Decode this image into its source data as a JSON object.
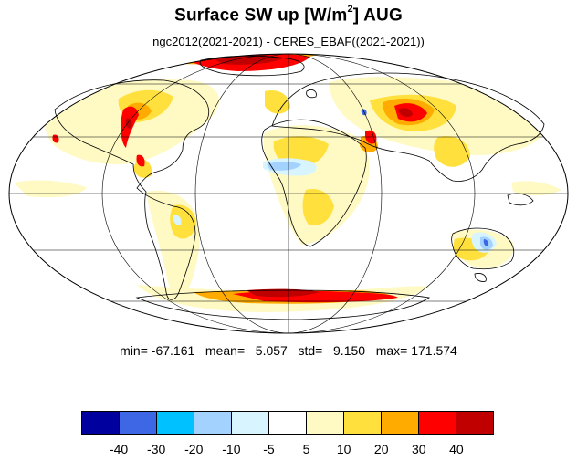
{
  "header": {
    "title_main": "Surface SW up [W/m",
    "title_sup": "2",
    "title_tail": "]  AUG",
    "subtitle": "ngc2012(2021-2021) - CERES_EBAF((2021-2021))"
  },
  "stats": {
    "text": "min= -67.161   mean=   5.057   std=   9.150   max= 171.574",
    "min": -67.161,
    "mean": 5.057,
    "std": 9.15,
    "max": 171.574
  },
  "colorbar": {
    "colors": [
      "#00009e",
      "#3e67e6",
      "#00c1ff",
      "#a4d2ff",
      "#d8f4ff",
      "#ffffff",
      "#fffac4",
      "#ffe03c",
      "#ffab00",
      "#ff0000",
      "#c00000"
    ],
    "levels": [
      "-40",
      "-30",
      "-20",
      "-10",
      "-5",
      "5",
      "10",
      "20",
      "30",
      "40"
    ]
  },
  "map": {
    "projection": "mollweide",
    "field": "difference in upward surface shortwave flux"
  }
}
